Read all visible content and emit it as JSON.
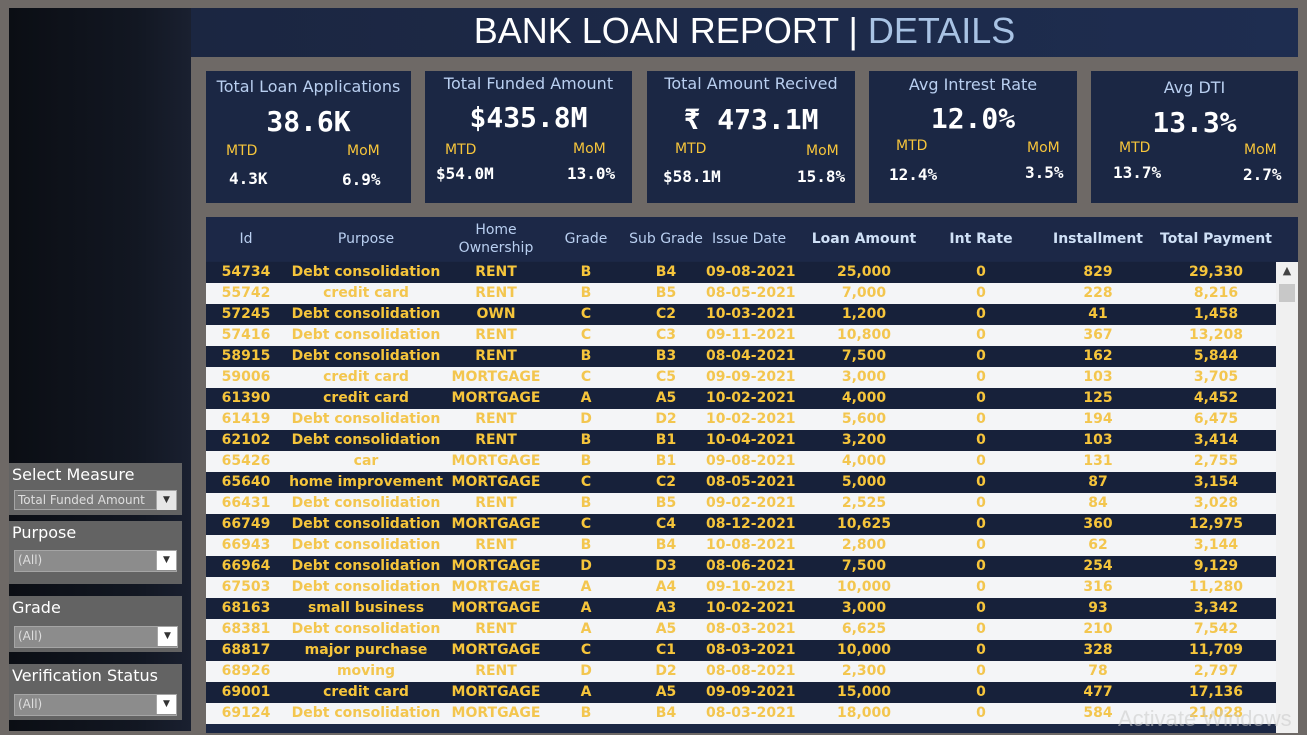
{
  "title": {
    "main": "BANK LOAN REPORT | ",
    "accent": "DETAILS"
  },
  "colors": {
    "header_bg": "#1e2d50",
    "card_bg": "#1b2744",
    "accent_gold": "#f6c53b",
    "label_blue": "#b9cff0",
    "frame": "#6e6966"
  },
  "kpis": [
    {
      "label": "Total Loan Applications",
      "value": "38.6K",
      "mtd_label": "MTD",
      "mtd": "4.3K",
      "mom_label": "MoM",
      "mom": "6.9%"
    },
    {
      "label": "Total Funded Amount",
      "value": "$435.8M",
      "mtd_label": "MTD",
      "mtd": "$54.0M",
      "mom_label": "MoM",
      "mom": "13.0%"
    },
    {
      "label": "Total Amount Recived",
      "value": "₹ 473.1M",
      "mtd_label": "MTD",
      "mtd": "$58.1M",
      "mom_label": "MoM",
      "mom": "15.8%"
    },
    {
      "label": "Avg Intrest Rate",
      "value": "12.0%",
      "mtd_label": "MTD",
      "mtd": "12.4%",
      "mom_label": "MoM",
      "mom": "3.5%"
    },
    {
      "label": "Avg DTI",
      "value": "13.3%",
      "mtd_label": "MTD",
      "mtd": "13.7%",
      "mom_label": "MoM",
      "mom": "2.7%"
    }
  ],
  "table": {
    "columns": [
      "Id",
      "Purpose",
      "Home Ownership",
      "Grade",
      "Sub Grade",
      "Issue Date",
      "Loan Amount",
      "Int Rate",
      "Installment",
      "Total Payment"
    ],
    "rows": [
      [
        "54734",
        "Debt consolidation",
        "RENT",
        "B",
        "B4",
        "09-08-2021",
        "25,000",
        "0",
        "829",
        "29,330"
      ],
      [
        "55742",
        "credit card",
        "RENT",
        "B",
        "B5",
        "08-05-2021",
        "7,000",
        "0",
        "228",
        "8,216"
      ],
      [
        "57245",
        "Debt consolidation",
        "OWN",
        "C",
        "C2",
        "10-03-2021",
        "1,200",
        "0",
        "41",
        "1,458"
      ],
      [
        "57416",
        "Debt consolidation",
        "RENT",
        "C",
        "C3",
        "09-11-2021",
        "10,800",
        "0",
        "367",
        "13,208"
      ],
      [
        "58915",
        "Debt consolidation",
        "RENT",
        "B",
        "B3",
        "08-04-2021",
        "7,500",
        "0",
        "162",
        "5,844"
      ],
      [
        "59006",
        "credit card",
        "MORTGAGE",
        "C",
        "C5",
        "09-09-2021",
        "3,000",
        "0",
        "103",
        "3,705"
      ],
      [
        "61390",
        "credit card",
        "MORTGAGE",
        "A",
        "A5",
        "10-02-2021",
        "4,000",
        "0",
        "125",
        "4,452"
      ],
      [
        "61419",
        "Debt consolidation",
        "RENT",
        "D",
        "D2",
        "10-02-2021",
        "5,600",
        "0",
        "194",
        "6,475"
      ],
      [
        "62102",
        "Debt consolidation",
        "RENT",
        "B",
        "B1",
        "10-04-2021",
        "3,200",
        "0",
        "103",
        "3,414"
      ],
      [
        "65426",
        "car",
        "MORTGAGE",
        "B",
        "B1",
        "09-08-2021",
        "4,000",
        "0",
        "131",
        "2,755"
      ],
      [
        "65640",
        "home improvement",
        "MORTGAGE",
        "C",
        "C2",
        "08-05-2021",
        "5,000",
        "0",
        "87",
        "3,154"
      ],
      [
        "66431",
        "Debt consolidation",
        "RENT",
        "B",
        "B5",
        "09-02-2021",
        "2,525",
        "0",
        "84",
        "3,028"
      ],
      [
        "66749",
        "Debt consolidation",
        "MORTGAGE",
        "C",
        "C4",
        "08-12-2021",
        "10,625",
        "0",
        "360",
        "12,975"
      ],
      [
        "66943",
        "Debt consolidation",
        "RENT",
        "B",
        "B4",
        "10-08-2021",
        "2,800",
        "0",
        "62",
        "3,144"
      ],
      [
        "66964",
        "Debt consolidation",
        "MORTGAGE",
        "D",
        "D3",
        "08-06-2021",
        "7,500",
        "0",
        "254",
        "9,129"
      ],
      [
        "67503",
        "Debt consolidation",
        "MORTGAGE",
        "A",
        "A4",
        "09-10-2021",
        "10,000",
        "0",
        "316",
        "11,280"
      ],
      [
        "68163",
        "small business",
        "MORTGAGE",
        "A",
        "A3",
        "10-02-2021",
        "3,000",
        "0",
        "93",
        "3,342"
      ],
      [
        "68381",
        "Debt consolidation",
        "RENT",
        "A",
        "A5",
        "08-03-2021",
        "6,625",
        "0",
        "210",
        "7,542"
      ],
      [
        "68817",
        "major purchase",
        "MORTGAGE",
        "C",
        "C1",
        "08-03-2021",
        "10,000",
        "0",
        "328",
        "11,709"
      ],
      [
        "68926",
        "moving",
        "RENT",
        "D",
        "D2",
        "08-08-2021",
        "2,300",
        "0",
        "78",
        "2,797"
      ],
      [
        "69001",
        "credit card",
        "MORTGAGE",
        "A",
        "A5",
        "09-09-2021",
        "15,000",
        "0",
        "477",
        "17,136"
      ],
      [
        "69124",
        "Debt consolidation",
        "MORTGAGE",
        "B",
        "B4",
        "08-03-2021",
        "18,000",
        "0",
        "584",
        "21,028"
      ]
    ]
  },
  "filters": [
    {
      "label": "Select Measure",
      "value": "Total Funded Amount"
    },
    {
      "label": "Purpose",
      "value": "(All)"
    },
    {
      "label": "Grade",
      "value": "(All)"
    },
    {
      "label": "Verification Status",
      "value": "(All)"
    }
  ],
  "watermark": "Activate Windows",
  "icons": {
    "dropdown": "chevron-down-icon",
    "scroll_up": "chevron-up-icon"
  }
}
